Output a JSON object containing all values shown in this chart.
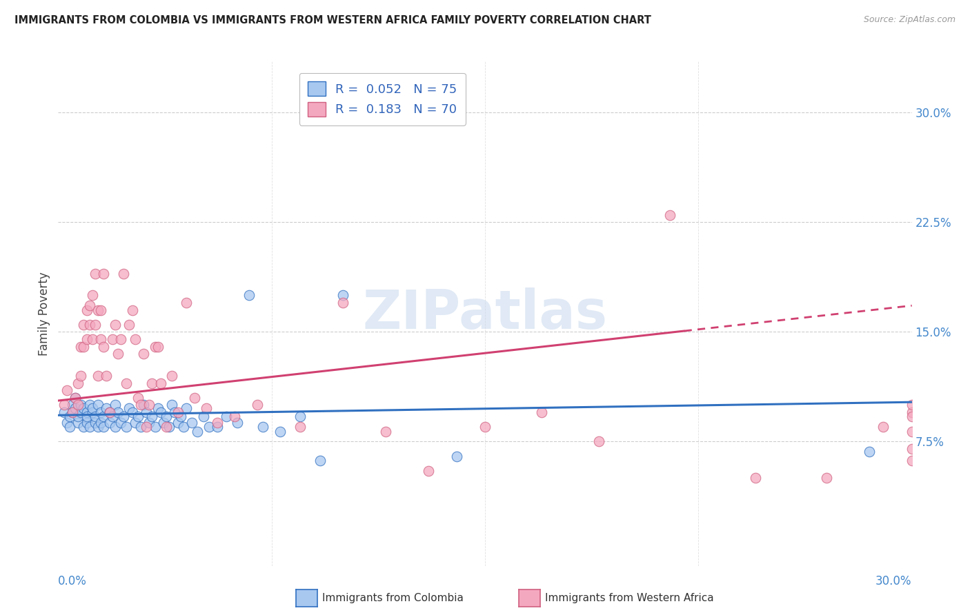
{
  "title": "IMMIGRANTS FROM COLOMBIA VS IMMIGRANTS FROM WESTERN AFRICA FAMILY POVERTY CORRELATION CHART",
  "source": "Source: ZipAtlas.com",
  "ylabel": "Family Poverty",
  "yticks": [
    "7.5%",
    "15.0%",
    "22.5%",
    "30.0%"
  ],
  "ytick_vals": [
    0.075,
    0.15,
    0.225,
    0.3
  ],
  "xlim": [
    0.0,
    0.3
  ],
  "ylim": [
    -0.01,
    0.335
  ],
  "color_colombia": "#a8c8f0",
  "color_westafrica": "#f4a8c0",
  "color_line_colombia": "#3070c0",
  "color_line_westafrica": "#d04070",
  "watermark": "ZIPatlas",
  "colombia_x": [
    0.002,
    0.003,
    0.004,
    0.004,
    0.005,
    0.005,
    0.006,
    0.006,
    0.007,
    0.007,
    0.008,
    0.008,
    0.009,
    0.009,
    0.01,
    0.01,
    0.01,
    0.011,
    0.011,
    0.012,
    0.012,
    0.013,
    0.013,
    0.014,
    0.014,
    0.015,
    0.015,
    0.016,
    0.016,
    0.017,
    0.018,
    0.018,
    0.019,
    0.02,
    0.02,
    0.021,
    0.022,
    0.023,
    0.024,
    0.025,
    0.026,
    0.027,
    0.028,
    0.029,
    0.03,
    0.031,
    0.032,
    0.033,
    0.034,
    0.035,
    0.036,
    0.037,
    0.038,
    0.039,
    0.04,
    0.041,
    0.042,
    0.043,
    0.044,
    0.045,
    0.047,
    0.049,
    0.051,
    0.053,
    0.056,
    0.059,
    0.063,
    0.067,
    0.072,
    0.078,
    0.085,
    0.092,
    0.1,
    0.14,
    0.285
  ],
  "colombia_y": [
    0.095,
    0.088,
    0.092,
    0.085,
    0.1,
    0.095,
    0.098,
    0.105,
    0.088,
    0.092,
    0.095,
    0.1,
    0.085,
    0.098,
    0.095,
    0.088,
    0.092,
    0.085,
    0.1,
    0.095,
    0.098,
    0.088,
    0.092,
    0.085,
    0.1,
    0.095,
    0.088,
    0.092,
    0.085,
    0.098,
    0.095,
    0.088,
    0.092,
    0.085,
    0.1,
    0.095,
    0.088,
    0.092,
    0.085,
    0.098,
    0.095,
    0.088,
    0.092,
    0.085,
    0.1,
    0.095,
    0.088,
    0.092,
    0.085,
    0.098,
    0.095,
    0.088,
    0.092,
    0.085,
    0.1,
    0.095,
    0.088,
    0.092,
    0.085,
    0.098,
    0.088,
    0.082,
    0.092,
    0.085,
    0.085,
    0.092,
    0.088,
    0.175,
    0.085,
    0.082,
    0.092,
    0.062,
    0.175,
    0.065,
    0.068
  ],
  "westafrica_x": [
    0.002,
    0.003,
    0.005,
    0.006,
    0.007,
    0.007,
    0.008,
    0.008,
    0.009,
    0.009,
    0.01,
    0.01,
    0.011,
    0.011,
    0.012,
    0.012,
    0.013,
    0.013,
    0.014,
    0.014,
    0.015,
    0.015,
    0.016,
    0.016,
    0.017,
    0.018,
    0.019,
    0.02,
    0.021,
    0.022,
    0.023,
    0.024,
    0.025,
    0.026,
    0.027,
    0.028,
    0.029,
    0.03,
    0.031,
    0.032,
    0.033,
    0.034,
    0.035,
    0.036,
    0.038,
    0.04,
    0.042,
    0.045,
    0.048,
    0.052,
    0.056,
    0.062,
    0.07,
    0.085,
    0.1,
    0.115,
    0.13,
    0.15,
    0.17,
    0.19,
    0.215,
    0.245,
    0.27,
    0.29,
    0.3,
    0.3,
    0.3,
    0.3,
    0.3,
    0.3
  ],
  "westafrica_y": [
    0.1,
    0.11,
    0.095,
    0.105,
    0.1,
    0.115,
    0.14,
    0.12,
    0.155,
    0.14,
    0.145,
    0.165,
    0.155,
    0.168,
    0.175,
    0.145,
    0.155,
    0.19,
    0.165,
    0.12,
    0.145,
    0.165,
    0.14,
    0.19,
    0.12,
    0.095,
    0.145,
    0.155,
    0.135,
    0.145,
    0.19,
    0.115,
    0.155,
    0.165,
    0.145,
    0.105,
    0.1,
    0.135,
    0.085,
    0.1,
    0.115,
    0.14,
    0.14,
    0.115,
    0.085,
    0.12,
    0.095,
    0.17,
    0.105,
    0.098,
    0.088,
    0.092,
    0.1,
    0.085,
    0.17,
    0.082,
    0.055,
    0.085,
    0.095,
    0.075,
    0.23,
    0.05,
    0.05,
    0.085,
    0.095,
    0.082,
    0.07,
    0.062,
    0.1,
    0.092
  ],
  "legend_text1": "R =  0.052   N = 75",
  "legend_text2": "R =  0.183   N = 70"
}
